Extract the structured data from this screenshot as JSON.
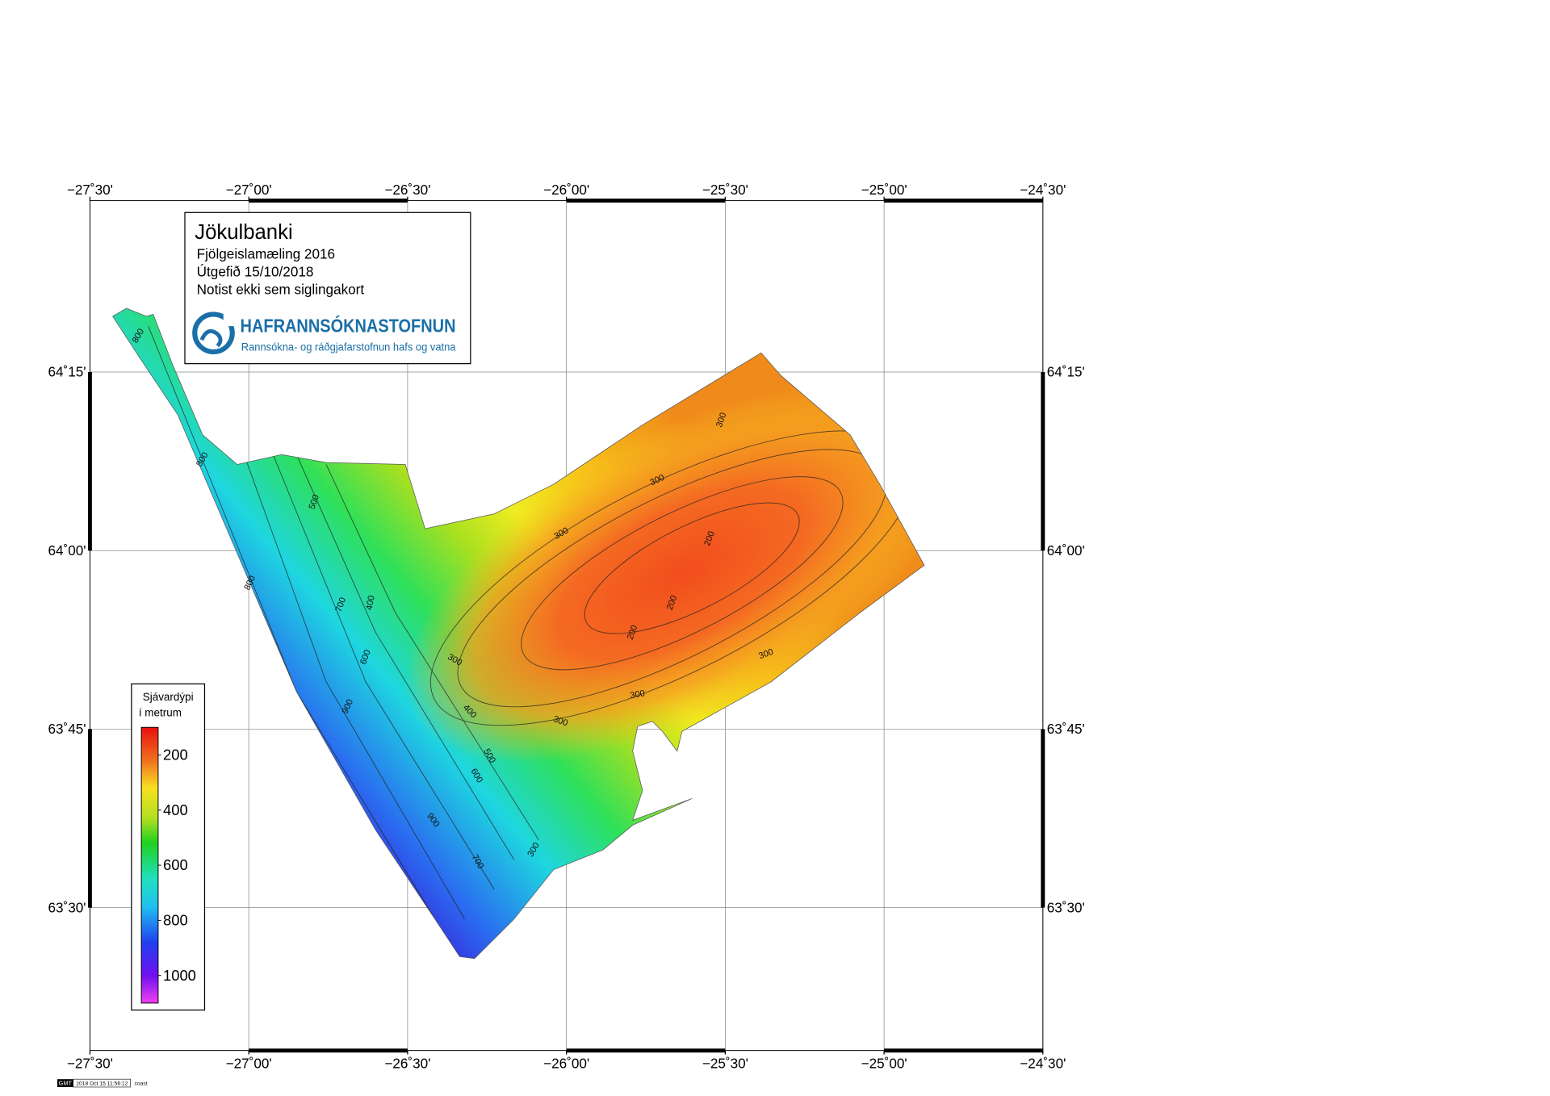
{
  "map": {
    "title": "Jökulbanki",
    "subtitle_lines": [
      "Fjölgeislamæling 2016",
      "Útgefið 15/10/2018",
      "Notist ekki sem siglingakort"
    ],
    "logo": {
      "name": "HAFRANNSÓKNASTOFNUN",
      "tagline": "Rannsókna- og ráðgjafarstofnun hafs og vatna"
    },
    "xlim": [
      -27.5,
      -24.5
    ],
    "ylim": [
      63.3,
      64.49
    ],
    "xticks": [
      {
        "value": -27.5,
        "label": "−27˚30'"
      },
      {
        "value": -27,
        "label": "−27˚00'"
      },
      {
        "value": -26.5,
        "label": "−26˚30'"
      },
      {
        "value": -26,
        "label": "−26˚00'"
      },
      {
        "value": -25.5,
        "label": "−25˚30'"
      },
      {
        "value": -25,
        "label": "−25˚00'"
      },
      {
        "value": -24.5,
        "label": "−24˚30'"
      }
    ],
    "yticks": [
      {
        "value": 63.5,
        "label": "63˚30'"
      },
      {
        "value": 63.75,
        "label": "63˚45'"
      },
      {
        "value": 64,
        "label": "64˚00'"
      },
      {
        "value": 64.25,
        "label": "64˚15'"
      }
    ],
    "grid": true,
    "colorbar": {
      "title_lines": [
        "Sjávardýpi",
        "í metrum"
      ],
      "clim": [
        100,
        1100
      ],
      "ticks": [
        200,
        400,
        600,
        800,
        1000
      ]
    },
    "contour_labels": [
      300,
      300,
      300,
      300,
      300,
      300,
      300,
      200,
      200,
      200,
      400,
      400,
      500,
      500,
      600,
      600,
      700,
      700,
      800,
      800,
      800,
      900,
      900,
      300
    ],
    "footer": {
      "badge": "GMT",
      "timestamp": "2018 Oct 15 11:56:12",
      "note": "coast"
    }
  }
}
